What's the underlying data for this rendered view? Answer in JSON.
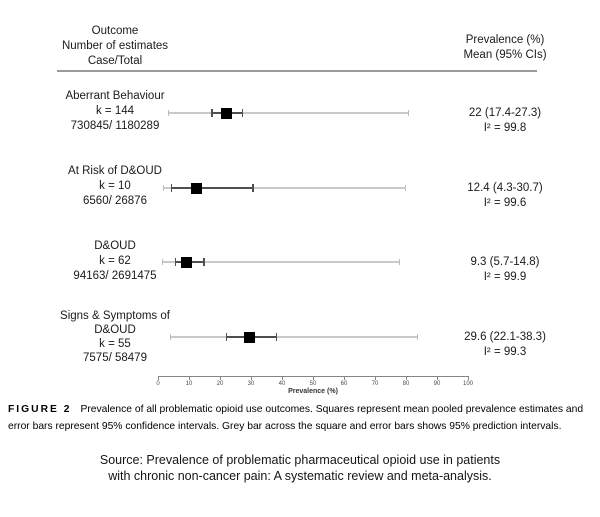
{
  "figure": {
    "header": {
      "left": [
        "Outcome",
        "Number of estimates",
        "Case/Total"
      ],
      "right": [
        "Prevalence (%)",
        "Mean (95% CIs)"
      ]
    },
    "caption": {
      "label": "FIGURE 2",
      "text": "Prevalence of all problematic opioid use outcomes. Squares represent mean pooled prevalence estimates and error bars represent 95% confidence intervals. Grey bar across the square and error bars shows 95% prediction intervals."
    },
    "source": [
      "Source: Prevalence of problematic pharmaceutical opioid use in patients",
      "with chronic non-cancer pain: A systematic review and meta-analysis."
    ]
  },
  "chart_data": {
    "type": "forest",
    "xlabel": "Prevalence (%)",
    "xlim": [
      0,
      100
    ],
    "ticks": [
      0,
      10,
      20,
      30,
      40,
      50,
      60,
      70,
      80,
      90,
      100
    ],
    "rows": [
      {
        "outcome": "Aberrant Behaviour",
        "k": "k = 144",
        "case_total": "730845/ 1180289",
        "mean": 22,
        "ci": [
          17.4,
          27.3
        ],
        "prediction_interval": [
          3.2,
          81
        ],
        "i2": 99.8,
        "mean_ci_text": "22 (17.4-27.3)",
        "i2_text": "I² = 99.8"
      },
      {
        "outcome": "At Risk of D&OUD",
        "k": "k = 10",
        "case_total": "6560/ 26876",
        "mean": 12.4,
        "ci": [
          4.3,
          30.7
        ],
        "prediction_interval": [
          1.6,
          80
        ],
        "i2": 99.6,
        "mean_ci_text": "12.4 (4.3-30.7)",
        "i2_text": "I² = 99.6"
      },
      {
        "outcome": "D&OUD",
        "k": "k = 62",
        "case_total": "94163/ 2691475",
        "mean": 9.3,
        "ci": [
          5.7,
          14.8
        ],
        "prediction_interval": [
          1.3,
          78
        ],
        "i2": 99.9,
        "mean_ci_text": "9.3 (5.7-14.8)",
        "i2_text": "I² = 99.9"
      },
      {
        "outcome": "Signs & Symptoms of D&OUD",
        "k": "k = 55",
        "case_total": "7575/ 58479",
        "mean": 29.6,
        "ci": [
          22.1,
          38.3
        ],
        "prediction_interval": [
          3.9,
          84
        ],
        "i2": 99.3,
        "mean_ci_text": "29.6 (22.1-38.3)",
        "i2_text": "I² = 99.3"
      }
    ]
  }
}
